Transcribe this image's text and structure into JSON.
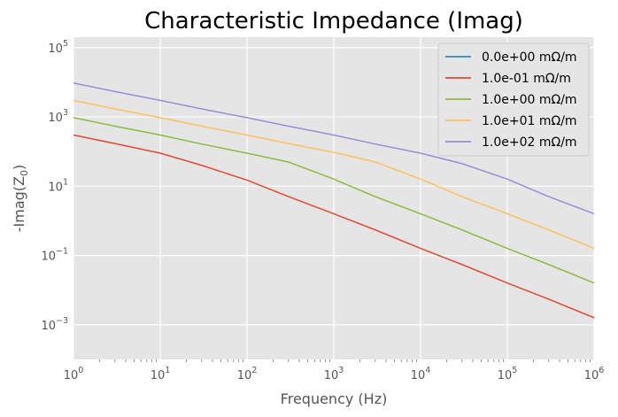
{
  "chart_data": {
    "type": "line",
    "title": "Characteristic Impedance (Imag)",
    "xlabel": "Frequency (Hz)",
    "ylabel": "-Imag(Z",
    "ylabel_sub": "0",
    "ylabel_end": ")",
    "xscale": "log",
    "yscale": "log",
    "xlim": [
      1,
      1000000
    ],
    "ylim": [
      0.0001,
      200000
    ],
    "x_ticks": [
      {
        "base": "10",
        "exp": "0"
      },
      {
        "base": "10",
        "exp": "1"
      },
      {
        "base": "10",
        "exp": "2"
      },
      {
        "base": "10",
        "exp": "3"
      },
      {
        "base": "10",
        "exp": "4"
      },
      {
        "base": "10",
        "exp": "5"
      },
      {
        "base": "10",
        "exp": "6"
      }
    ],
    "y_ticks": [
      {
        "base": "10",
        "exp": "−3"
      },
      {
        "base": "10",
        "exp": "−1"
      },
      {
        "base": "10",
        "exp": "1"
      },
      {
        "base": "10",
        "exp": "3"
      },
      {
        "base": "10",
        "exp": "5"
      }
    ],
    "grid": true,
    "legend_position": "top-right",
    "series": [
      {
        "name": "0.0e+00 mΩ/m",
        "color": "#348ABD",
        "x": [
          1,
          10,
          100,
          1000,
          10000,
          100000,
          1000000
        ],
        "y": [
          null,
          null,
          null,
          null,
          null,
          null,
          null
        ]
      },
      {
        "name": "1.0e-01 mΩ/m",
        "color": "#E24A33",
        "x": [
          1,
          3,
          10,
          30,
          100,
          300,
          1000,
          3000,
          10000,
          30000,
          100000,
          300000,
          1000000
        ],
        "y": [
          300,
          170,
          90,
          40,
          15,
          5,
          1.6,
          0.55,
          0.16,
          0.055,
          0.016,
          0.0055,
          0.0016
        ]
      },
      {
        "name": "1.0e+00 mΩ/m",
        "color": "#8EBA42",
        "x": [
          1,
          3,
          10,
          30,
          100,
          300,
          1000,
          3000,
          10000,
          30000,
          100000,
          300000,
          1000000
        ],
        "y": [
          950,
          540,
          300,
          165,
          90,
          50,
          16,
          5,
          1.6,
          0.55,
          0.16,
          0.055,
          0.016
        ]
      },
      {
        "name": "1.0e+01 mΩ/m",
        "color": "#FBC15E",
        "x": [
          1,
          3,
          10,
          30,
          100,
          300,
          1000,
          3000,
          10000,
          30000,
          100000,
          300000,
          1000000
        ],
        "y": [
          3000,
          1700,
          950,
          540,
          300,
          170,
          95,
          50,
          16,
          5,
          1.6,
          0.55,
          0.16
        ]
      },
      {
        "name": "1.0e+02 mΩ/m",
        "color": "#988ED5",
        "x": [
          1,
          3,
          10,
          30,
          100,
          300,
          1000,
          3000,
          10000,
          30000,
          100000,
          300000,
          1000000
        ],
        "y": [
          9500,
          5400,
          3000,
          1700,
          950,
          540,
          300,
          165,
          90,
          45,
          16,
          5,
          1.6
        ]
      }
    ]
  },
  "colors": {
    "plot_background": "#E5E5E5",
    "grid": "#FFFFFF",
    "tick_text": "#555555",
    "legend_background": "#E5E5E5",
    "legend_border": "#CCCCCC"
  }
}
